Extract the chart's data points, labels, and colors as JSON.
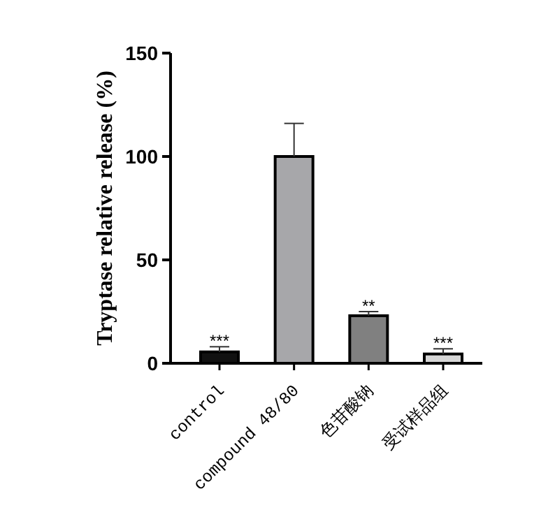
{
  "chart_data": {
    "type": "bar",
    "ylabel": "Tryptase relative release (%)",
    "categories": [
      "control",
      "compound 48/80",
      "色苷酸钠",
      "受试样品组"
    ],
    "values": [
      5.5,
      100,
      23,
      4.5
    ],
    "colors": [
      "#111111",
      "#a7a7aa",
      "#808080",
      "#d6d6d6"
    ],
    "errors": [
      [
        5.5,
        8
      ],
      [
        100,
        116
      ],
      [
        23,
        25
      ],
      [
        4.5,
        7
      ]
    ],
    "ylim": [
      0,
      150
    ],
    "yticks": [
      0,
      50,
      100,
      150
    ],
    "annotations": [
      {
        "text": "***",
        "x": "control",
        "y": 8
      },
      {
        "text": "**",
        "x": "色苷酸钠",
        "y": 25
      },
      {
        "text": "***",
        "x": "受试样品组",
        "y": 7
      }
    ]
  }
}
